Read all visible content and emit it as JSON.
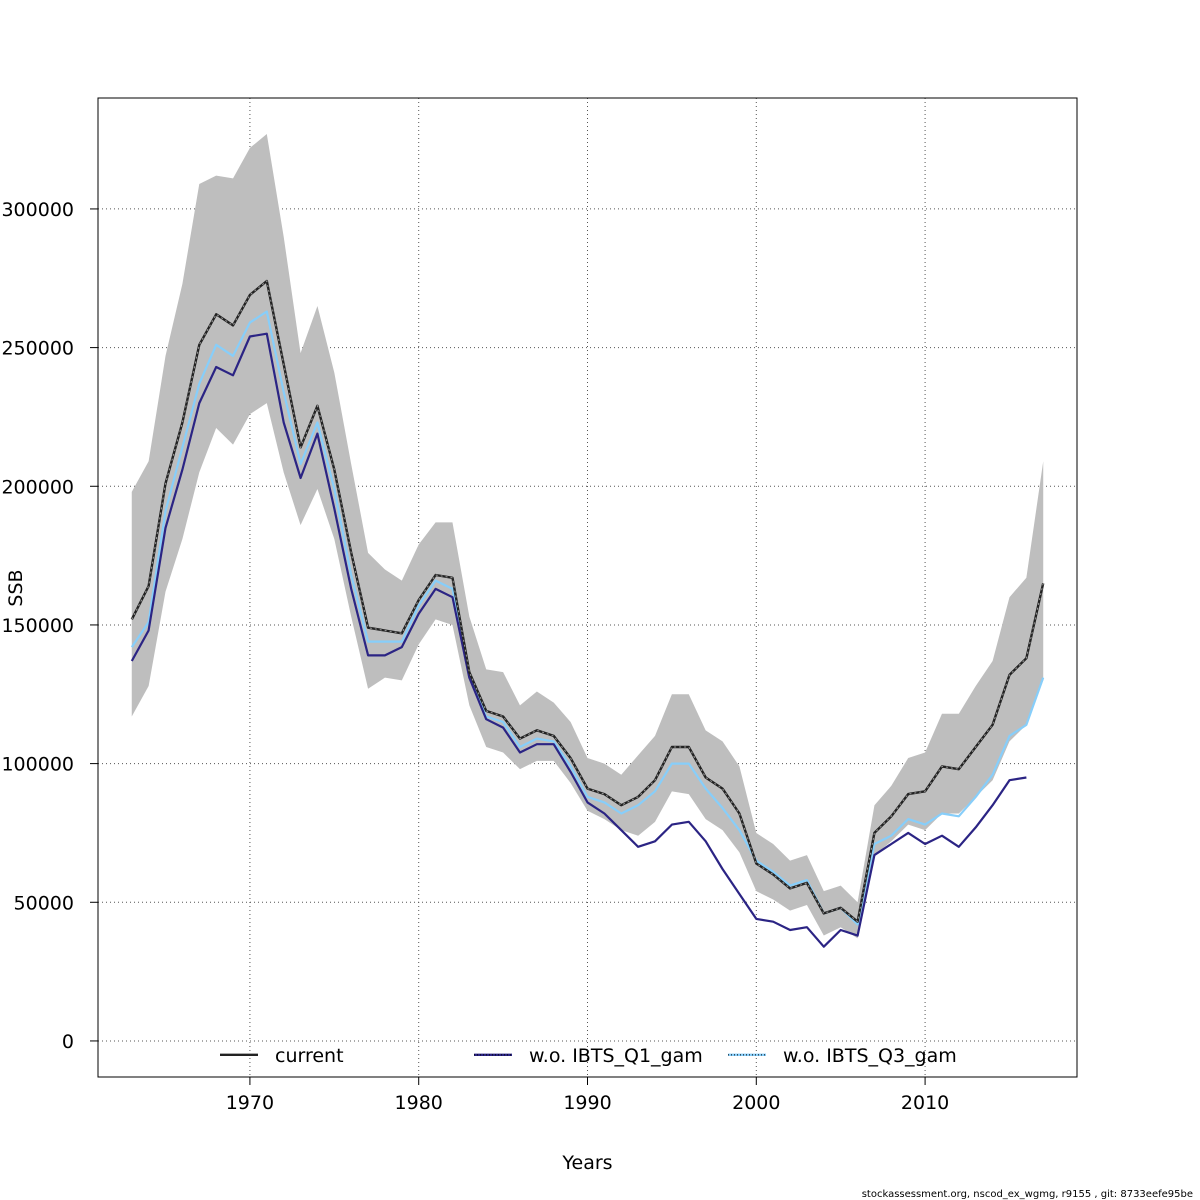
{
  "chart_data": {
    "type": "line",
    "xlabel": "Years",
    "ylabel": "SSB",
    "xlim": [
      1961,
      2019
    ],
    "ylim": [
      -13000,
      340000
    ],
    "xticks": [
      1970,
      1980,
      1990,
      2000,
      2010
    ],
    "yticks": [
      0,
      50000,
      100000,
      150000,
      200000,
      250000,
      300000
    ],
    "grid": true,
    "legend_position": "bottom",
    "colors": {
      "band": "#bebebe",
      "current": "#222222",
      "q1": "#2b2484",
      "q3": "#87cefa"
    },
    "band": {
      "years": [
        1963,
        1964,
        1965,
        1966,
        1967,
        1968,
        1969,
        1970,
        1971,
        1972,
        1973,
        1974,
        1975,
        1976,
        1977,
        1978,
        1979,
        1980,
        1981,
        1982,
        1983,
        1984,
        1985,
        1986,
        1987,
        1988,
        1989,
        1990,
        1991,
        1992,
        1993,
        1994,
        1995,
        1996,
        1997,
        1998,
        1999,
        2000,
        2001,
        2002,
        2003,
        2004,
        2005,
        2006,
        2007,
        2008,
        2009,
        2010,
        2011,
        2012,
        2013,
        2014,
        2015,
        2016,
        2017
      ],
      "upper": [
        198000,
        209000,
        247000,
        273000,
        309000,
        312000,
        311000,
        322000,
        327000,
        290000,
        248000,
        265000,
        241000,
        208000,
        176000,
        170000,
        166000,
        179000,
        187000,
        187000,
        153000,
        134000,
        133000,
        121000,
        126000,
        122000,
        115000,
        102000,
        100000,
        96000,
        103000,
        110000,
        125000,
        125000,
        112000,
        108000,
        99000,
        75000,
        71000,
        65000,
        67000,
        54000,
        56000,
        50000,
        85000,
        92000,
        102000,
        104000,
        118000,
        118000,
        128000,
        137000,
        160000,
        167000,
        209000
      ],
      "lower": [
        117000,
        128000,
        162000,
        181000,
        205000,
        221000,
        215000,
        226000,
        230000,
        205000,
        186000,
        199000,
        181000,
        153000,
        127000,
        131000,
        130000,
        143000,
        152000,
        150000,
        121000,
        106000,
        104000,
        98000,
        101000,
        101000,
        93000,
        83000,
        80000,
        76000,
        74000,
        79000,
        90000,
        89000,
        80000,
        76000,
        68000,
        54000,
        51000,
        47000,
        49000,
        38000,
        41000,
        37000,
        67000,
        72000,
        78000,
        76000,
        82000,
        82000,
        88000,
        94000,
        108000,
        114000,
        130000
      ]
    },
    "series": [
      {
        "name": "current",
        "years": [
          1963,
          1964,
          1965,
          1966,
          1967,
          1968,
          1969,
          1970,
          1971,
          1972,
          1973,
          1974,
          1975,
          1976,
          1977,
          1978,
          1979,
          1980,
          1981,
          1982,
          1983,
          1984,
          1985,
          1986,
          1987,
          1988,
          1989,
          1990,
          1991,
          1992,
          1993,
          1994,
          1995,
          1996,
          1997,
          1998,
          1999,
          2000,
          2001,
          2002,
          2003,
          2004,
          2005,
          2006,
          2007,
          2008,
          2009,
          2010,
          2011,
          2012,
          2013,
          2014,
          2015,
          2016,
          2017
        ],
        "values": [
          152000,
          164000,
          201000,
          223000,
          251000,
          262000,
          258000,
          269000,
          274000,
          244000,
          214000,
          229000,
          206000,
          176000,
          149000,
          148000,
          147000,
          159000,
          168000,
          167000,
          133000,
          119000,
          117000,
          109000,
          112000,
          110000,
          102000,
          91000,
          89000,
          85000,
          88000,
          94000,
          106000,
          106000,
          95000,
          91000,
          82000,
          64000,
          60000,
          55000,
          57000,
          46000,
          48000,
          43000,
          75000,
          81000,
          89000,
          90000,
          99000,
          98000,
          106000,
          114000,
          132000,
          138000,
          165000
        ]
      },
      {
        "name": "w.o. IBTS_Q1_gam",
        "years": [
          1963,
          1964,
          1965,
          1966,
          1967,
          1968,
          1969,
          1970,
          1971,
          1972,
          1973,
          1974,
          1975,
          1976,
          1977,
          1978,
          1979,
          1980,
          1981,
          1982,
          1983,
          1984,
          1985,
          1986,
          1987,
          1988,
          1989,
          1990,
          1991,
          1992,
          1993,
          1994,
          1995,
          1996,
          1997,
          1998,
          1999,
          2000,
          2001,
          2002,
          2003,
          2004,
          2005,
          2006,
          2007,
          2008,
          2009,
          2010,
          2011,
          2012,
          2013,
          2014,
          2015,
          2016
        ],
        "values": [
          137000,
          148000,
          185000,
          206000,
          230000,
          243000,
          240000,
          254000,
          255000,
          223000,
          203000,
          219000,
          192000,
          163000,
          139000,
          139000,
          142000,
          154000,
          163000,
          160000,
          131000,
          116000,
          113000,
          104000,
          107000,
          107000,
          97000,
          86000,
          82000,
          76000,
          70000,
          72000,
          78000,
          79000,
          72000,
          62000,
          53000,
          44000,
          43000,
          40000,
          41000,
          34000,
          40000,
          38000,
          67000,
          71000,
          75000,
          71000,
          74000,
          70000,
          77000,
          85000,
          94000,
          95000
        ]
      },
      {
        "name": "w.o. IBTS_Q3_gam",
        "years": [
          1963,
          1964,
          1965,
          1966,
          1967,
          1968,
          1969,
          1970,
          1971,
          1972,
          1973,
          1974,
          1975,
          1976,
          1977,
          1978,
          1979,
          1980,
          1981,
          1982,
          1983,
          1984,
          1985,
          1986,
          1987,
          1988,
          1989,
          1990,
          1991,
          1992,
          1993,
          1994,
          1995,
          1996,
          1997,
          1998,
          1999,
          2000,
          2001,
          2002,
          2003,
          2004,
          2005,
          2006,
          2007,
          2008,
          2009,
          2010,
          2011,
          2012,
          2013,
          2014,
          2015,
          2016,
          2017
        ],
        "values": [
          142000,
          151000,
          191000,
          214000,
          237000,
          251000,
          247000,
          259000,
          263000,
          234000,
          208000,
          223000,
          199000,
          168000,
          144000,
          144000,
          144000,
          157000,
          166000,
          163000,
          132000,
          117000,
          115000,
          106000,
          109000,
          108000,
          99000,
          88000,
          86000,
          82000,
          85000,
          90000,
          100000,
          100000,
          91000,
          84000,
          76000,
          65000,
          61000,
          56000,
          58000,
          46000,
          48000,
          42000,
          71000,
          74000,
          80000,
          78000,
          82000,
          81000,
          88000,
          96000,
          110000,
          114000,
          131000
        ]
      }
    ]
  },
  "footer": "stockassessment.org, nscod_ex_wgmg, r9155 , git: 8733eefe95be"
}
